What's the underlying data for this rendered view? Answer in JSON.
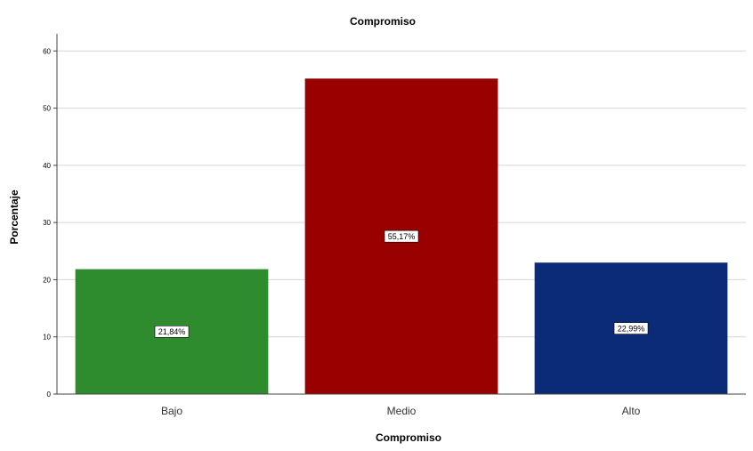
{
  "chart_data": {
    "type": "bar",
    "title": "Compromiso",
    "xlabel": "Compromiso",
    "ylabel": "Porcentaje",
    "categories": [
      "Bajo",
      "Medio",
      "Alto"
    ],
    "values": [
      21.84,
      55.17,
      22.99
    ],
    "data_labels": [
      "21,84%",
      "55,17%",
      "22,99%"
    ],
    "colors": [
      "#2e8b2e",
      "#990000",
      "#0b2a78"
    ],
    "ylim": [
      0,
      63
    ],
    "yticks": [
      0,
      10,
      20,
      30,
      40,
      50,
      60
    ],
    "grid": true,
    "legend": "none"
  }
}
